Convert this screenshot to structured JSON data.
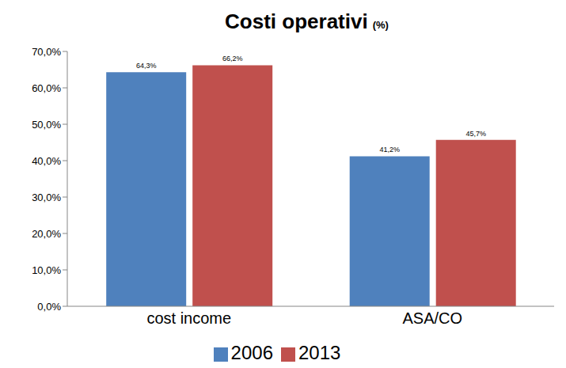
{
  "chart_data": {
    "type": "bar",
    "title": "Costi operativi",
    "subtitle": "(%)",
    "categories": [
      "cost income",
      "ASA/CO"
    ],
    "series": [
      {
        "name": "2006",
        "color": "#4f81bd",
        "values": [
          64.3,
          41.2
        ],
        "value_labels": [
          "64,3%",
          "41,2%"
        ]
      },
      {
        "name": "2013",
        "color": "#c0504d",
        "values": [
          66.2,
          45.7
        ],
        "value_labels": [
          "66,2%",
          "45,7%"
        ]
      }
    ],
    "ylim": [
      0,
      70
    ],
    "yticks": [
      {
        "value": 0,
        "label": "0,0%"
      },
      {
        "value": 10,
        "label": "10,0%"
      },
      {
        "value": 20,
        "label": "20,0%"
      },
      {
        "value": 30,
        "label": "30,0%"
      },
      {
        "value": 40,
        "label": "40,0%"
      },
      {
        "value": 50,
        "label": "50,0%"
      },
      {
        "value": 60,
        "label": "60,0%"
      },
      {
        "value": 70,
        "label": "70,0%"
      }
    ],
    "grid": false,
    "legend": "bottom",
    "data_labels": true
  }
}
